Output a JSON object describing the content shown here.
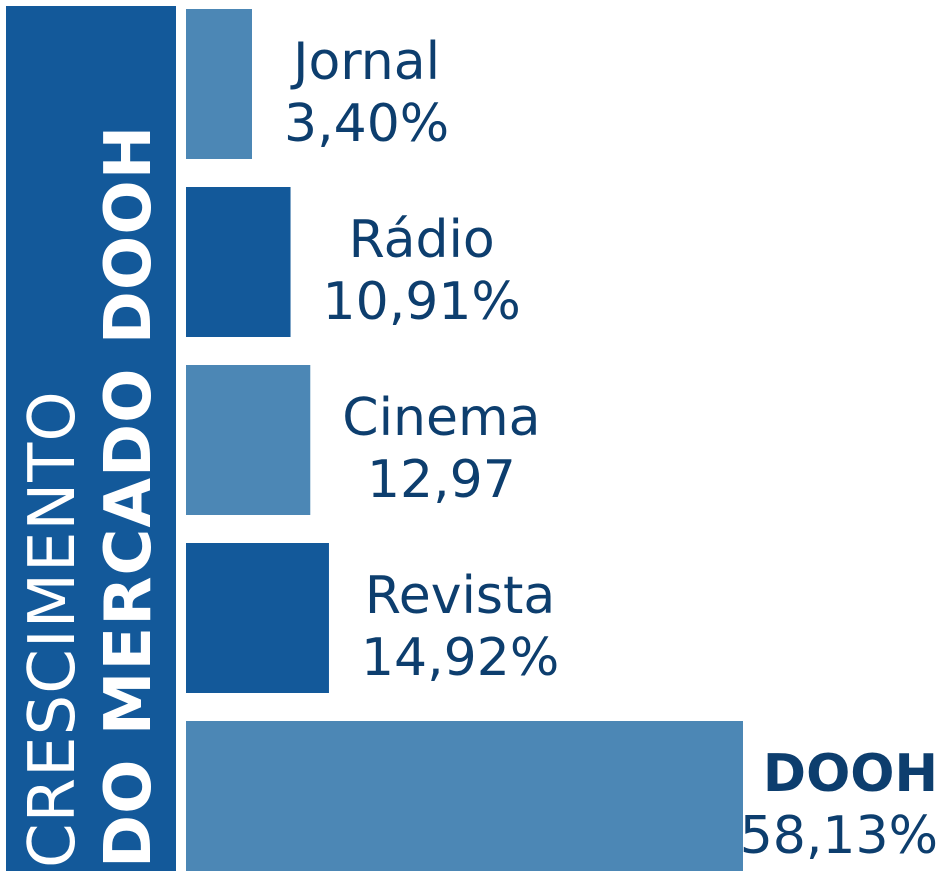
{
  "title": {
    "line1": "CRESCIMENTO",
    "line2": "DO MERCADO DOOH"
  },
  "colors": {
    "title_bg": "#13599a",
    "bar_light": "#4c87b5",
    "bar_dark": "#13599a",
    "label": "#0d3e6e"
  },
  "chart_data": {
    "type": "bar",
    "orientation": "horizontal",
    "title": "CRESCIMENTO DO MERCADO DOOH",
    "categories": [
      "Jornal",
      "Rádio",
      "Cinema",
      "Revista",
      "DOOH"
    ],
    "values": [
      3.4,
      10.91,
      12.97,
      14.92,
      58.13
    ],
    "value_labels": [
      "3,40%",
      "10,91%",
      "12,97",
      "14,92%",
      "58,13%"
    ],
    "bar_colors": [
      "#4c87b5",
      "#13599a",
      "#4c87b5",
      "#13599a",
      "#4c87b5"
    ],
    "highlight": "DOOH",
    "grid": false,
    "legend": "none"
  }
}
